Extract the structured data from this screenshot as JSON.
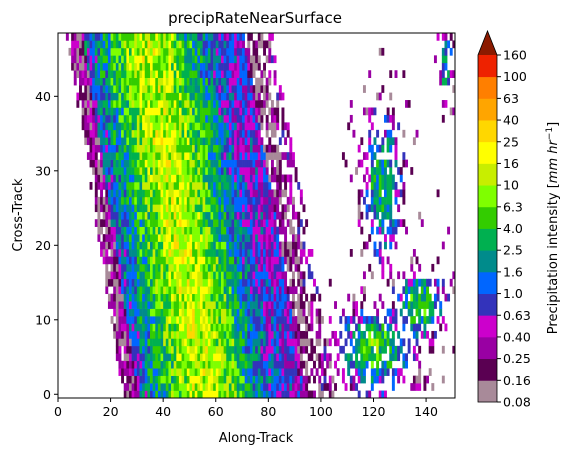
{
  "chart_data": {
    "type": "heatmap",
    "title": "precipRateNearSurface",
    "xlabel": "Along-Track",
    "ylabel": "Cross-Track",
    "xlim": [
      0,
      151
    ],
    "ylim": [
      -0.5,
      48.5
    ],
    "x_ticks": [
      "0",
      "20",
      "40",
      "60",
      "80",
      "100",
      "120",
      "140"
    ],
    "y_ticks": [
      "0",
      "10",
      "20",
      "30",
      "40"
    ],
    "colorbar": {
      "label": "Precipitation intensity [mm hr⁻¹]",
      "label_prefix": "Precipitation intensity [",
      "label_unit": "mm hr",
      "label_exp": "−1",
      "label_suffix": "]",
      "extend": "max",
      "ticks": [
        "0.08",
        "0.16",
        "0.25",
        "0.40",
        "0.63",
        "1.0",
        "1.6",
        "2.5",
        "4.0",
        "6.3",
        "10",
        "16",
        "25",
        "40",
        "63",
        "100",
        "160"
      ],
      "colors": [
        "#a88a99",
        "#5a0052",
        "#9900a3",
        "#cc00cc",
        "#3333bb",
        "#0066ff",
        "#008b8b",
        "#00b050",
        "#33cc00",
        "#7fff00",
        "#c8ee00",
        "#ffff00",
        "#ffd700",
        "#ffa500",
        "#ff7f00",
        "#ee2200",
        "#8b1a00"
      ]
    },
    "grid": false
  }
}
